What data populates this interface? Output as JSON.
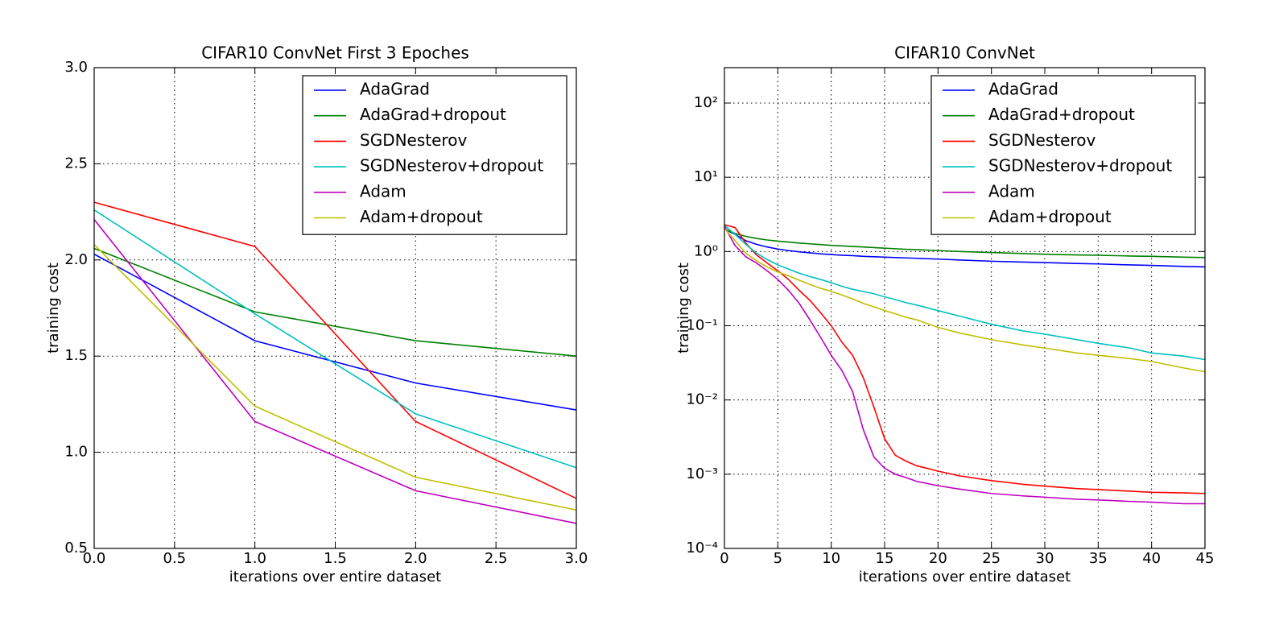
{
  "chart_data": [
    {
      "type": "line",
      "title": "CIFAR10 ConvNet First 3 Epoches",
      "xlabel": "iterations over entire dataset",
      "ylabel": "training cost",
      "x": [
        0,
        1,
        2,
        3
      ],
      "series": [
        {
          "name": "AdaGrad",
          "color": "#0000ff",
          "values": [
            2.03,
            1.58,
            1.36,
            1.22
          ]
        },
        {
          "name": "AdaGrad+dropout",
          "color": "#008000",
          "values": [
            2.06,
            1.73,
            1.58,
            1.5
          ]
        },
        {
          "name": "SGDNesterov",
          "color": "#ff0000",
          "values": [
            2.3,
            2.07,
            1.16,
            0.76
          ]
        },
        {
          "name": "SGDNesterov+dropout",
          "color": "#00bfbf",
          "values": [
            2.26,
            1.72,
            1.2,
            0.92
          ]
        },
        {
          "name": "Adam",
          "color": "#bf00bf",
          "values": [
            2.21,
            1.16,
            0.8,
            0.63
          ]
        },
        {
          "name": "Adam+dropout",
          "color": "#bfbf00",
          "values": [
            2.08,
            1.24,
            0.87,
            0.7
          ]
        }
      ],
      "xlim": [
        0,
        3
      ],
      "ylim": [
        0.5,
        3
      ],
      "xticks": [
        {
          "value": 0,
          "label": "0.0"
        },
        0.5,
        {
          "value": 1,
          "label": "1.0"
        },
        1.5,
        {
          "value": 2,
          "label": "2.0"
        },
        2.5,
        {
          "value": 3,
          "label": "3.0"
        }
      ],
      "yticks": [
        0.5,
        {
          "value": 1,
          "label": "1.0"
        },
        1.5,
        {
          "value": 2,
          "label": "2.0"
        },
        2.5,
        {
          "value": 3,
          "label": "3.0"
        }
      ],
      "grid": true,
      "legend": "upper right"
    },
    {
      "type": "line",
      "title": "CIFAR10 ConvNet",
      "xlabel": "iterations over entire dataset",
      "ylabel": "training cost",
      "x": [
        0,
        1,
        2,
        3,
        4,
        5,
        6,
        7,
        8,
        9,
        10,
        11,
        12,
        13,
        14,
        15,
        16,
        17,
        18,
        20,
        22,
        25,
        28,
        30,
        33,
        35,
        38,
        40,
        43,
        45
      ],
      "series": [
        {
          "name": "AdaGrad",
          "color": "#0000ff",
          "values": [
            2.0,
            1.7,
            1.4,
            1.25,
            1.15,
            1.08,
            1.03,
            0.99,
            0.96,
            0.93,
            0.91,
            0.89,
            0.88,
            0.86,
            0.85,
            0.84,
            0.83,
            0.82,
            0.81,
            0.79,
            0.77,
            0.74,
            0.72,
            0.71,
            0.69,
            0.68,
            0.66,
            0.65,
            0.63,
            0.62
          ]
        },
        {
          "name": "AdaGrad+dropout",
          "color": "#008000",
          "values": [
            2.0,
            1.75,
            1.6,
            1.5,
            1.43,
            1.38,
            1.34,
            1.3,
            1.27,
            1.24,
            1.21,
            1.19,
            1.17,
            1.15,
            1.13,
            1.11,
            1.09,
            1.07,
            1.06,
            1.03,
            1.0,
            0.97,
            0.94,
            0.92,
            0.9,
            0.89,
            0.87,
            0.86,
            0.84,
            0.83
          ]
        },
        {
          "name": "SGDNesterov",
          "color": "#ff0000",
          "values": [
            2.3,
            2.1,
            1.3,
            0.9,
            0.7,
            0.55,
            0.42,
            0.3,
            0.22,
            0.15,
            0.1,
            0.06,
            0.04,
            0.02,
            0.008,
            0.003,
            0.0018,
            0.0015,
            0.0013,
            0.0011,
            0.00095,
            0.00082,
            0.00073,
            0.00069,
            0.00064,
            0.00062,
            0.00059,
            0.00057,
            0.00056,
            0.00055
          ]
        },
        {
          "name": "SGDNesterov+dropout",
          "color": "#00bfbf",
          "values": [
            2.25,
            1.7,
            1.25,
            0.95,
            0.78,
            0.66,
            0.58,
            0.51,
            0.46,
            0.42,
            0.38,
            0.34,
            0.31,
            0.29,
            0.27,
            0.245,
            0.225,
            0.205,
            0.19,
            0.16,
            0.135,
            0.105,
            0.085,
            0.077,
            0.065,
            0.058,
            0.05,
            0.043,
            0.039,
            0.035
          ]
        },
        {
          "name": "Adam",
          "color": "#bf00bf",
          "values": [
            2.2,
            1.2,
            0.85,
            0.7,
            0.55,
            0.42,
            0.3,
            0.2,
            0.12,
            0.07,
            0.04,
            0.025,
            0.013,
            0.004,
            0.0017,
            0.0012,
            0.001,
            0.0009,
            0.0008,
            0.0007,
            0.00063,
            0.00055,
            0.00051,
            0.00049,
            0.00046,
            0.00045,
            0.00043,
            0.00042,
            0.0004,
            0.0004
          ]
        },
        {
          "name": "Adam+dropout",
          "color": "#bfbf00",
          "values": [
            2.05,
            1.4,
            0.95,
            0.75,
            0.62,
            0.53,
            0.47,
            0.41,
            0.36,
            0.32,
            0.29,
            0.26,
            0.23,
            0.2,
            0.18,
            0.16,
            0.145,
            0.13,
            0.12,
            0.095,
            0.08,
            0.065,
            0.055,
            0.05,
            0.043,
            0.04,
            0.036,
            0.033,
            0.027,
            0.024
          ]
        }
      ],
      "xlim": [
        0,
        45
      ],
      "ylim": [
        0.0001,
        300
      ],
      "yscale": "log",
      "xticks": [
        0,
        5,
        10,
        15,
        20,
        25,
        30,
        35,
        40,
        45
      ],
      "yticks": [
        {
          "value": 0.0001,
          "label": "10⁻⁴"
        },
        {
          "value": 0.001,
          "label": "10⁻³"
        },
        {
          "value": 0.01,
          "label": "10⁻²"
        },
        {
          "value": 0.1,
          "label": "10⁻¹"
        },
        {
          "value": 1,
          "label": "10⁰"
        },
        {
          "value": 10,
          "label": "10¹"
        },
        {
          "value": 100,
          "label": "10²"
        }
      ],
      "grid": true,
      "legend": "upper right"
    }
  ]
}
